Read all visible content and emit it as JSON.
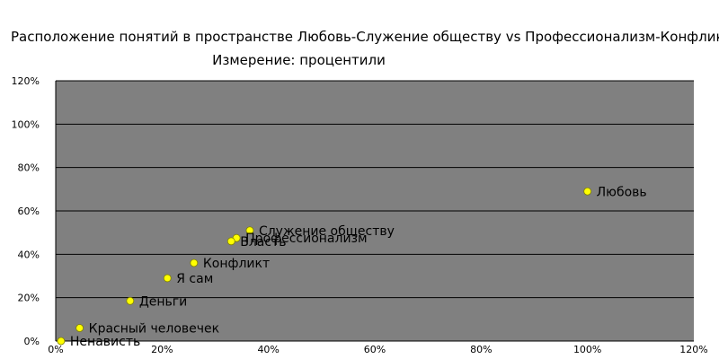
{
  "chart_data": {
    "type": "scatter",
    "title": "Расположение понятий в пространстве Любовь-Служение обществу vs Профессионализм-Конфликт",
    "subtitle": "Измерение: процентили",
    "xlabel": "",
    "ylabel": "",
    "xlim": [
      0,
      1.2
    ],
    "ylim": [
      0,
      1.2
    ],
    "x_ticks": [
      "0%",
      "20%",
      "40%",
      "60%",
      "80%",
      "100%",
      "120%"
    ],
    "y_ticks": [
      "0%",
      "20%",
      "40%",
      "60%",
      "80%",
      "100%",
      "120%"
    ],
    "grid": true,
    "legend": "none",
    "colors": {
      "plot_background": "#808080",
      "grid": "#000000",
      "marker_fill": "#ffff00",
      "marker_edge": "#808000"
    },
    "points": [
      {
        "label": "Любовь",
        "x": 1.0,
        "y": 0.69
      },
      {
        "label": "Служение обществу",
        "x": 0.365,
        "y": 0.51
      },
      {
        "label": "Профессионализм",
        "x": 0.34,
        "y": 0.475
      },
      {
        "label": "Власть",
        "x": 0.33,
        "y": 0.46
      },
      {
        "label": "Конфликт",
        "x": 0.26,
        "y": 0.36
      },
      {
        "label": "Я сам",
        "x": 0.21,
        "y": 0.29
      },
      {
        "label": "Деньги",
        "x": 0.14,
        "y": 0.185
      },
      {
        "label": "Красный человечек",
        "x": 0.045,
        "y": 0.06
      },
      {
        "label": "Ненависть",
        "x": 0.01,
        "y": 0.0
      }
    ]
  }
}
